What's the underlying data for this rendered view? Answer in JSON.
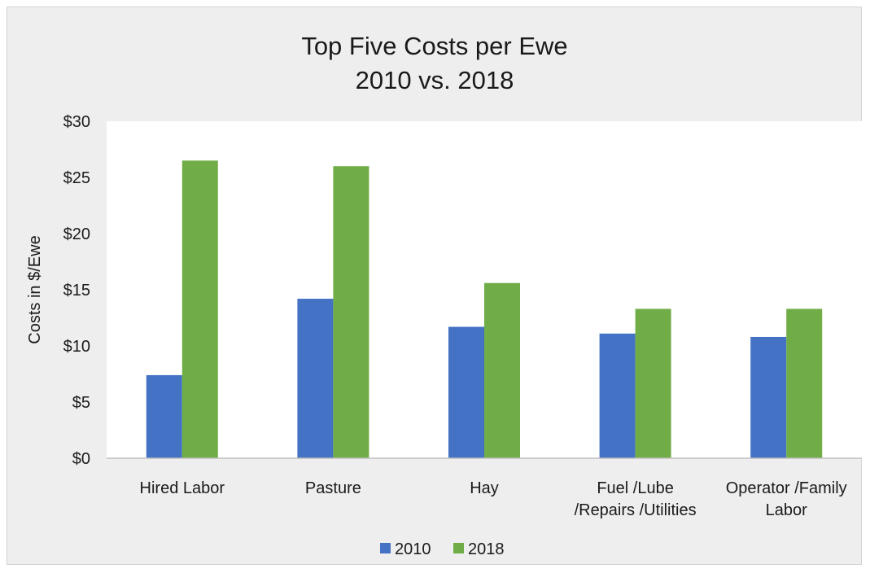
{
  "chart_data": {
    "type": "bar",
    "title": "Top Five Costs per Ewe",
    "subtitle": "2010 vs. 2018",
    "xlabel": "",
    "ylabel": "Costs in $/Ewe",
    "categories": [
      [
        "Hired Labor"
      ],
      [
        "Pasture"
      ],
      [
        "Hay"
      ],
      [
        "Fuel /Lube",
        "/Repairs /Utilities"
      ],
      [
        "Operator /Family",
        "Labor"
      ]
    ],
    "series": [
      {
        "name": "2010",
        "color": "#4472c4",
        "values": [
          7.4,
          14.2,
          11.7,
          11.1,
          10.8
        ]
      },
      {
        "name": "2018",
        "color": "#70ad47",
        "values": [
          26.5,
          26.0,
          15.6,
          13.3,
          13.3
        ]
      }
    ],
    "ylim": [
      0,
      30
    ],
    "yticks": [
      0,
      5,
      10,
      15,
      20,
      25,
      30
    ],
    "ytick_labels": [
      "$0",
      "$5",
      "$10",
      "$15",
      "$20",
      "$25",
      "$30"
    ],
    "grid": false,
    "legend_position": "bottom",
    "plot_background": "#ffffff",
    "chart_background": "#eeeeee"
  }
}
